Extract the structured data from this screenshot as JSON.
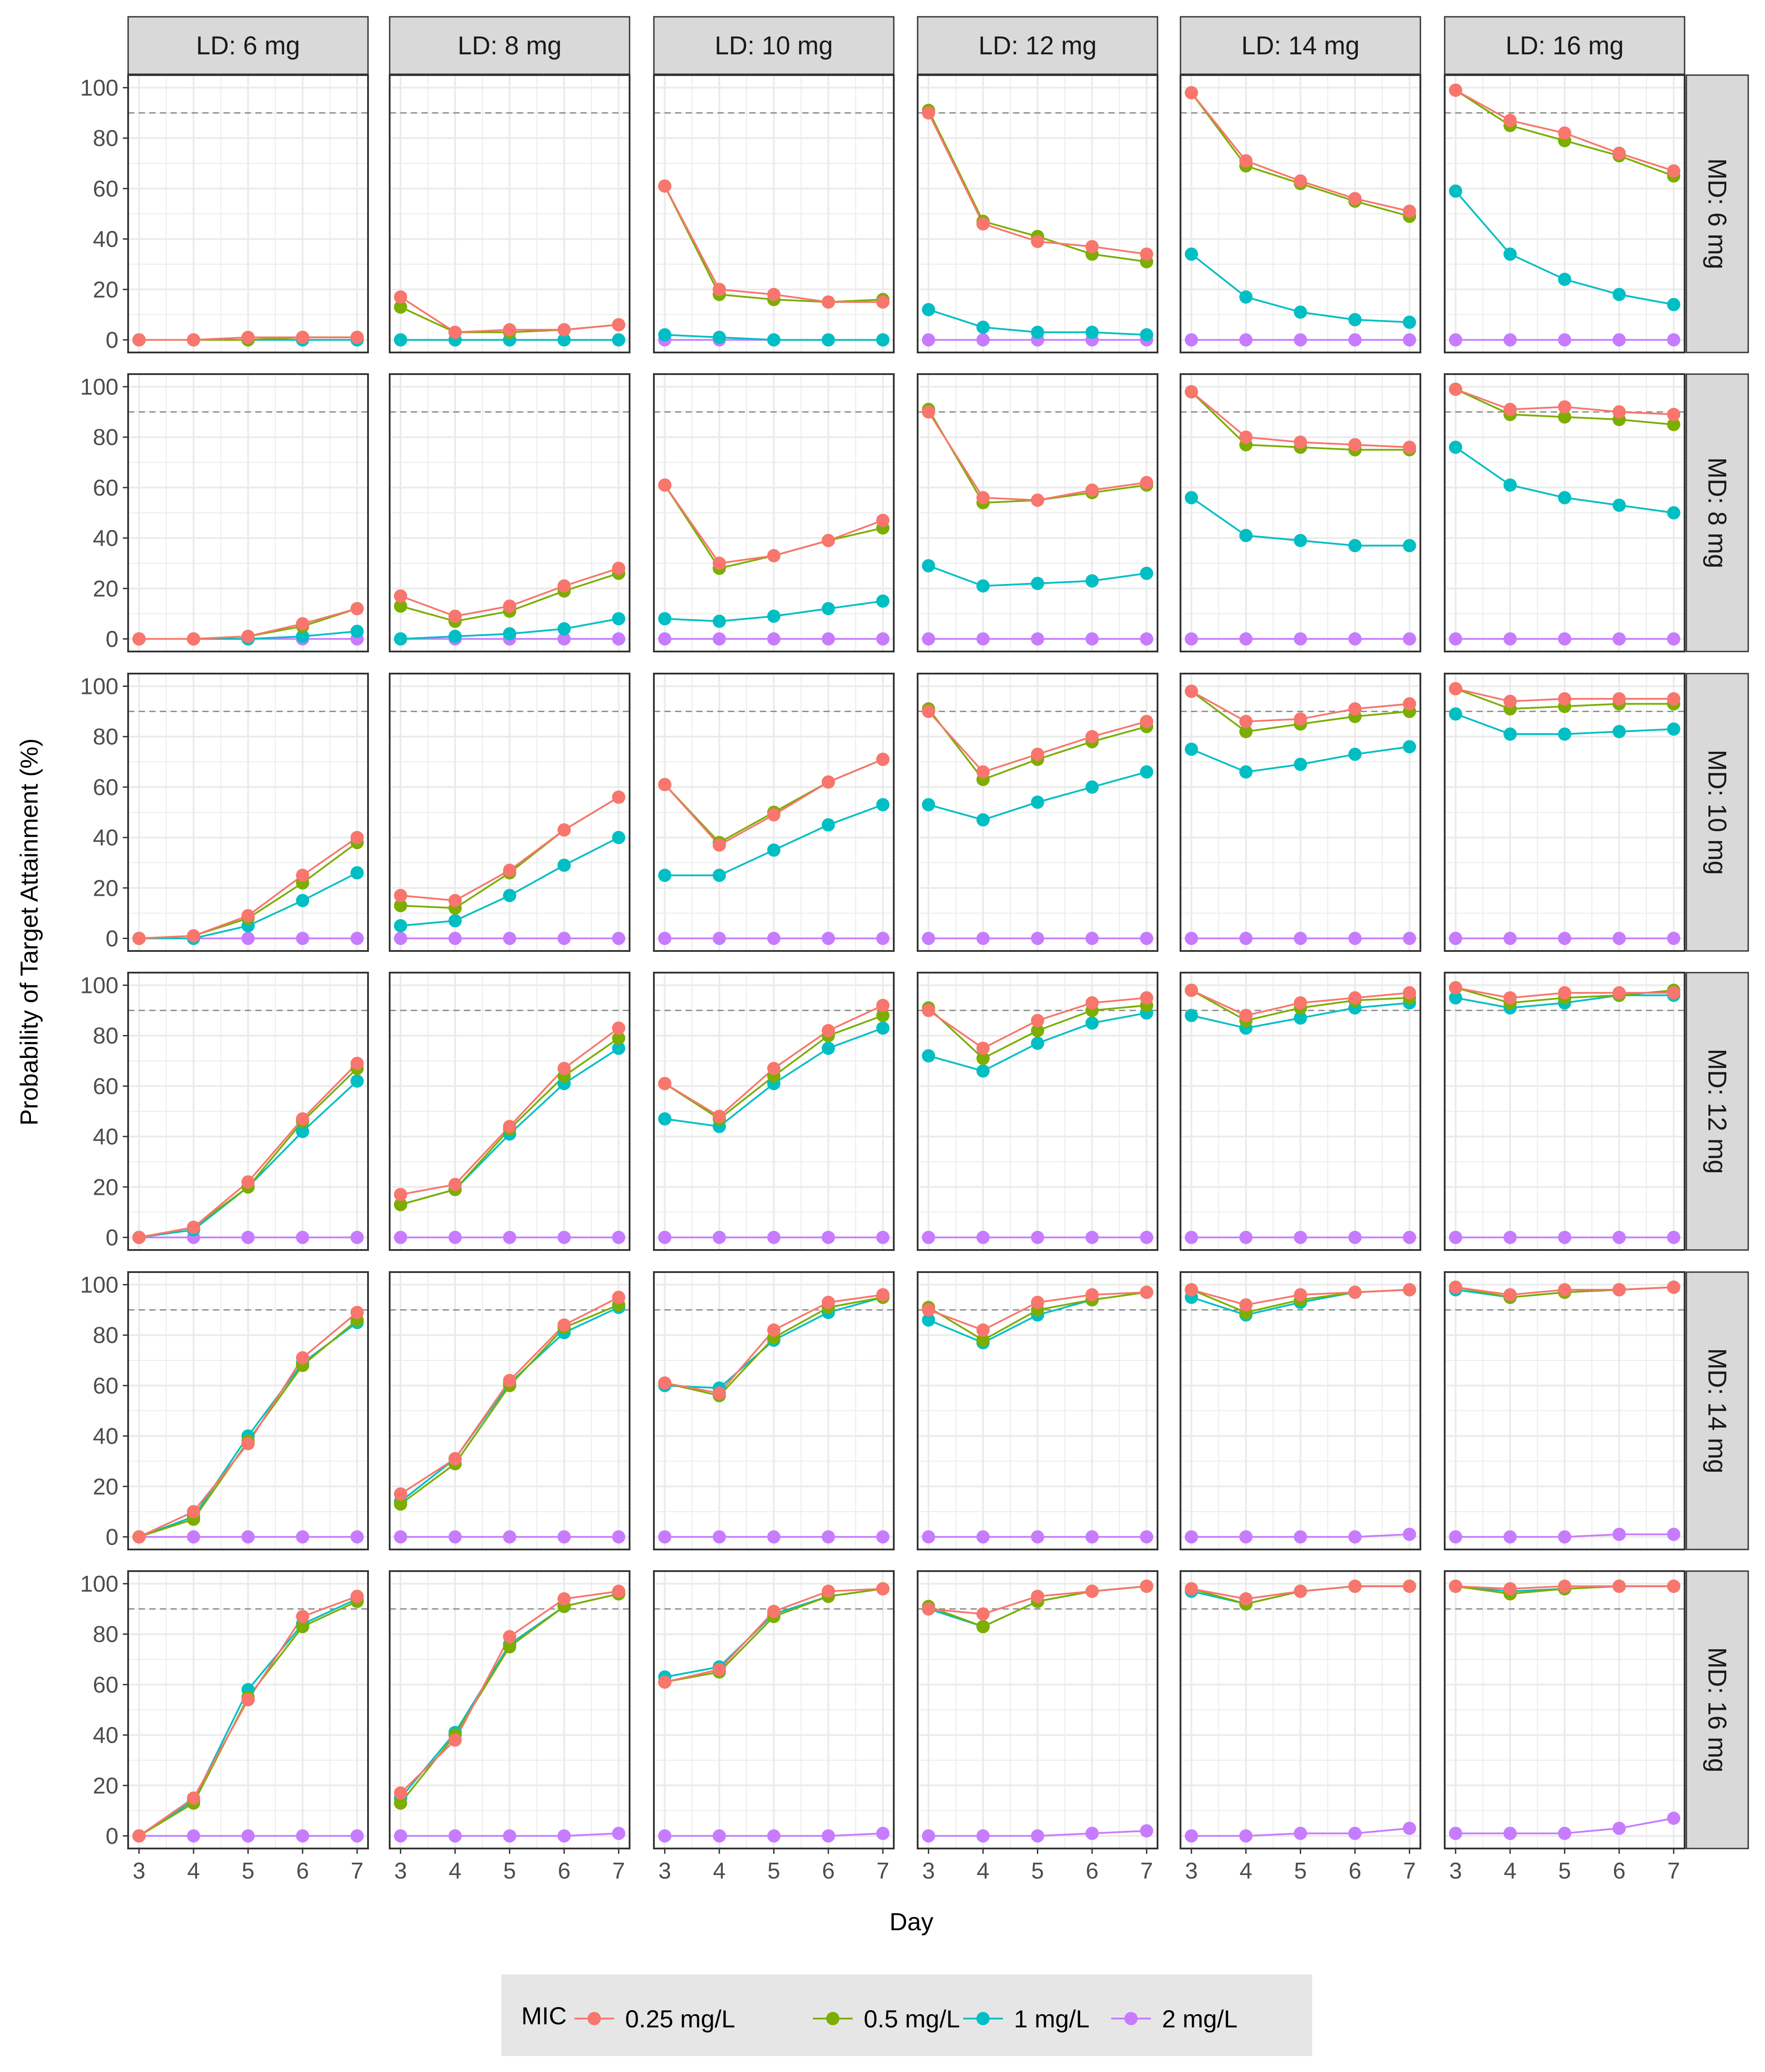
{
  "colors": {
    "mic_0_25": "#F8766D",
    "mic_0_5": "#7CAE00",
    "mic_1": "#00BFC4",
    "mic_2": "#C77CFF",
    "strip_bg": "#D9D9D9",
    "grid": "#EBEBEB",
    "reference": "#8C8C8C"
  },
  "chart_data": {
    "type": "line",
    "facet_type": "grid",
    "xlabel": "Day",
    "ylabel": "Probability of Target Attainment (%)",
    "x": [
      3,
      4,
      5,
      6,
      7
    ],
    "xticks": [
      "3",
      "4",
      "5",
      "6",
      "7"
    ],
    "ylim": [
      0,
      100
    ],
    "yticks": [
      "0",
      "20",
      "40",
      "60",
      "80",
      "100"
    ],
    "reference_line": 90,
    "col_facets": [
      "LD: 6 mg",
      "LD: 8 mg",
      "LD: 10 mg",
      "LD: 12 mg",
      "LD: 14 mg",
      "LD: 16 mg"
    ],
    "row_facets": [
      "MD: 6 mg",
      "MD: 8 mg",
      "MD: 10 mg",
      "MD: 12 mg",
      "MD: 14 mg",
      "MD: 16 mg"
    ],
    "legend": {
      "title": "MIC",
      "position": "bottom",
      "entries": [
        "0.25 mg/L",
        "0.5 mg/L",
        "1 mg/L",
        "2 mg/L"
      ]
    },
    "series_names": [
      "0.25 mg/L",
      "0.5 mg/L",
      "1 mg/L",
      "2 mg/L"
    ],
    "panels": [
      [
        [
          [
            0,
            0,
            1,
            1,
            1
          ],
          [
            0,
            0,
            0,
            1,
            1
          ],
          [
            0,
            0,
            0,
            0,
            0
          ],
          [
            0,
            0,
            0,
            0,
            0
          ]
        ],
        [
          [
            17,
            3,
            4,
            4,
            6
          ],
          [
            13,
            3,
            3,
            4,
            6
          ],
          [
            0,
            0,
            0,
            0,
            0
          ],
          [
            0,
            0,
            0,
            0,
            0
          ]
        ],
        [
          [
            61,
            20,
            18,
            15,
            15
          ],
          [
            61,
            18,
            16,
            15,
            16
          ],
          [
            2,
            1,
            0,
            0,
            0
          ],
          [
            0,
            0,
            0,
            0,
            0
          ]
        ],
        [
          [
            90,
            46,
            39,
            37,
            34
          ],
          [
            91,
            47,
            41,
            34,
            31
          ],
          [
            12,
            5,
            3,
            3,
            2
          ],
          [
            0,
            0,
            0,
            0,
            0
          ]
        ],
        [
          [
            98,
            71,
            63,
            56,
            51
          ],
          [
            98,
            69,
            62,
            55,
            49
          ],
          [
            34,
            17,
            11,
            8,
            7
          ],
          [
            0,
            0,
            0,
            0,
            0
          ]
        ],
        [
          [
            99,
            87,
            82,
            74,
            67
          ],
          [
            99,
            85,
            79,
            73,
            65
          ],
          [
            59,
            34,
            24,
            18,
            14
          ],
          [
            0,
            0,
            0,
            0,
            0
          ]
        ]
      ],
      [
        [
          [
            0,
            0,
            1,
            6,
            12
          ],
          [
            0,
            0,
            1,
            5,
            12
          ],
          [
            0,
            0,
            0,
            1,
            3
          ],
          [
            0,
            0,
            0,
            0,
            0
          ]
        ],
        [
          [
            17,
            9,
            13,
            21,
            28
          ],
          [
            13,
            7,
            11,
            19,
            26
          ],
          [
            0,
            1,
            2,
            4,
            8
          ],
          [
            0,
            0,
            0,
            0,
            0
          ]
        ],
        [
          [
            61,
            30,
            33,
            39,
            47
          ],
          [
            61,
            28,
            33,
            39,
            44
          ],
          [
            8,
            7,
            9,
            12,
            15
          ],
          [
            0,
            0,
            0,
            0,
            0
          ]
        ],
        [
          [
            90,
            56,
            55,
            59,
            62
          ],
          [
            91,
            54,
            55,
            58,
            61
          ],
          [
            29,
            21,
            22,
            23,
            26
          ],
          [
            0,
            0,
            0,
            0,
            0
          ]
        ],
        [
          [
            98,
            80,
            78,
            77,
            76
          ],
          [
            98,
            77,
            76,
            75,
            75
          ],
          [
            56,
            41,
            39,
            37,
            37
          ],
          [
            0,
            0,
            0,
            0,
            0
          ]
        ],
        [
          [
            99,
            91,
            92,
            90,
            89
          ],
          [
            99,
            89,
            88,
            87,
            85
          ],
          [
            76,
            61,
            56,
            53,
            50
          ],
          [
            0,
            0,
            0,
            0,
            0
          ]
        ]
      ],
      [
        [
          [
            0,
            1,
            9,
            25,
            40
          ],
          [
            0,
            1,
            8,
            22,
            38
          ],
          [
            0,
            0,
            5,
            15,
            26
          ],
          [
            0,
            0,
            0,
            0,
            0
          ]
        ],
        [
          [
            17,
            15,
            27,
            43,
            56
          ],
          [
            13,
            12,
            26,
            43,
            56
          ],
          [
            5,
            7,
            17,
            29,
            40
          ],
          [
            0,
            0,
            0,
            0,
            0
          ]
        ],
        [
          [
            61,
            37,
            49,
            62,
            71
          ],
          [
            61,
            38,
            50,
            62,
            71
          ],
          [
            25,
            25,
            35,
            45,
            53
          ],
          [
            0,
            0,
            0,
            0,
            0
          ]
        ],
        [
          [
            90,
            66,
            73,
            80,
            86
          ],
          [
            91,
            63,
            71,
            78,
            84
          ],
          [
            53,
            47,
            54,
            60,
            66
          ],
          [
            0,
            0,
            0,
            0,
            0
          ]
        ],
        [
          [
            98,
            86,
            87,
            91,
            93
          ],
          [
            98,
            82,
            85,
            88,
            90
          ],
          [
            75,
            66,
            69,
            73,
            76
          ],
          [
            0,
            0,
            0,
            0,
            0
          ]
        ],
        [
          [
            99,
            94,
            95,
            95,
            95
          ],
          [
            99,
            91,
            92,
            93,
            93
          ],
          [
            89,
            81,
            81,
            82,
            83
          ],
          [
            0,
            0,
            0,
            0,
            0
          ]
        ]
      ],
      [
        [
          [
            0,
            4,
            22,
            47,
            69
          ],
          [
            0,
            4,
            20,
            46,
            67
          ],
          [
            0,
            3,
            20,
            42,
            62
          ],
          [
            0,
            0,
            0,
            0,
            0
          ]
        ],
        [
          [
            17,
            21,
            44,
            67,
            83
          ],
          [
            13,
            19,
            43,
            64,
            79
          ],
          [
            13,
            19,
            41,
            61,
            75
          ],
          [
            0,
            0,
            0,
            0,
            0
          ]
        ],
        [
          [
            61,
            48,
            67,
            82,
            92
          ],
          [
            61,
            47,
            64,
            80,
            88
          ],
          [
            47,
            44,
            61,
            75,
            83
          ],
          [
            0,
            0,
            0,
            0,
            0
          ]
        ],
        [
          [
            90,
            75,
            86,
            93,
            95
          ],
          [
            91,
            71,
            82,
            90,
            92
          ],
          [
            72,
            66,
            77,
            85,
            89
          ],
          [
            0,
            0,
            0,
            0,
            0
          ]
        ],
        [
          [
            98,
            88,
            93,
            95,
            97
          ],
          [
            98,
            86,
            91,
            94,
            95
          ],
          [
            88,
            83,
            87,
            91,
            93
          ],
          [
            0,
            0,
            0,
            0,
            0
          ]
        ],
        [
          [
            99,
            95,
            97,
            97,
            97
          ],
          [
            99,
            93,
            95,
            96,
            98
          ],
          [
            95,
            91,
            93,
            96,
            96
          ],
          [
            0,
            0,
            0,
            0,
            0
          ]
        ]
      ],
      [
        [
          [
            0,
            10,
            37,
            71,
            89
          ],
          [
            0,
            7,
            38,
            68,
            86
          ],
          [
            0,
            8,
            40,
            69,
            85
          ],
          [
            0,
            0,
            0,
            0,
            0
          ]
        ],
        [
          [
            17,
            31,
            62,
            84,
            95
          ],
          [
            13,
            29,
            60,
            83,
            92
          ],
          [
            14,
            31,
            61,
            81,
            91
          ],
          [
            0,
            0,
            0,
            0,
            0
          ]
        ],
        [
          [
            61,
            57,
            82,
            93,
            96
          ],
          [
            61,
            56,
            79,
            91,
            95
          ],
          [
            60,
            59,
            78,
            89,
            95
          ],
          [
            0,
            0,
            0,
            0,
            0
          ]
        ],
        [
          [
            90,
            82,
            93,
            96,
            97
          ],
          [
            91,
            78,
            90,
            94,
            97
          ],
          [
            86,
            77,
            88,
            94,
            97
          ],
          [
            0,
            0,
            0,
            0,
            0
          ]
        ],
        [
          [
            98,
            92,
            96,
            97,
            98
          ],
          [
            98,
            89,
            94,
            97,
            98
          ],
          [
            95,
            88,
            93,
            97,
            98
          ],
          [
            0,
            0,
            0,
            0,
            1
          ]
        ],
        [
          [
            99,
            96,
            98,
            98,
            99
          ],
          [
            99,
            95,
            97,
            98,
            99
          ],
          [
            98,
            95,
            97,
            98,
            99
          ],
          [
            0,
            0,
            0,
            1,
            1
          ]
        ]
      ],
      [
        [
          [
            0,
            15,
            54,
            87,
            95
          ],
          [
            0,
            13,
            55,
            83,
            93
          ],
          [
            0,
            14,
            58,
            84,
            94
          ],
          [
            0,
            0,
            0,
            0,
            0
          ]
        ],
        [
          [
            17,
            38,
            79,
            94,
            97
          ],
          [
            13,
            40,
            75,
            91,
            96
          ],
          [
            15,
            41,
            76,
            91,
            96
          ],
          [
            0,
            0,
            0,
            0,
            1
          ]
        ],
        [
          [
            61,
            66,
            89,
            97,
            98
          ],
          [
            61,
            65,
            87,
            95,
            98
          ],
          [
            63,
            67,
            88,
            95,
            98
          ],
          [
            0,
            0,
            0,
            0,
            1
          ]
        ],
        [
          [
            90,
            88,
            95,
            97,
            99
          ],
          [
            91,
            83,
            93,
            97,
            99
          ],
          [
            90,
            83,
            93,
            97,
            99
          ],
          [
            0,
            0,
            0,
            1,
            2
          ]
        ],
        [
          [
            98,
            94,
            97,
            99,
            99
          ],
          [
            98,
            92,
            97,
            99,
            99
          ],
          [
            97,
            92,
            97,
            99,
            99
          ],
          [
            0,
            0,
            1,
            1,
            3
          ]
        ],
        [
          [
            99,
            98,
            99,
            99,
            99
          ],
          [
            99,
            96,
            98,
            99,
            99
          ],
          [
            99,
            97,
            98,
            99,
            99
          ],
          [
            1,
            1,
            1,
            3,
            7
          ]
        ]
      ]
    ]
  }
}
